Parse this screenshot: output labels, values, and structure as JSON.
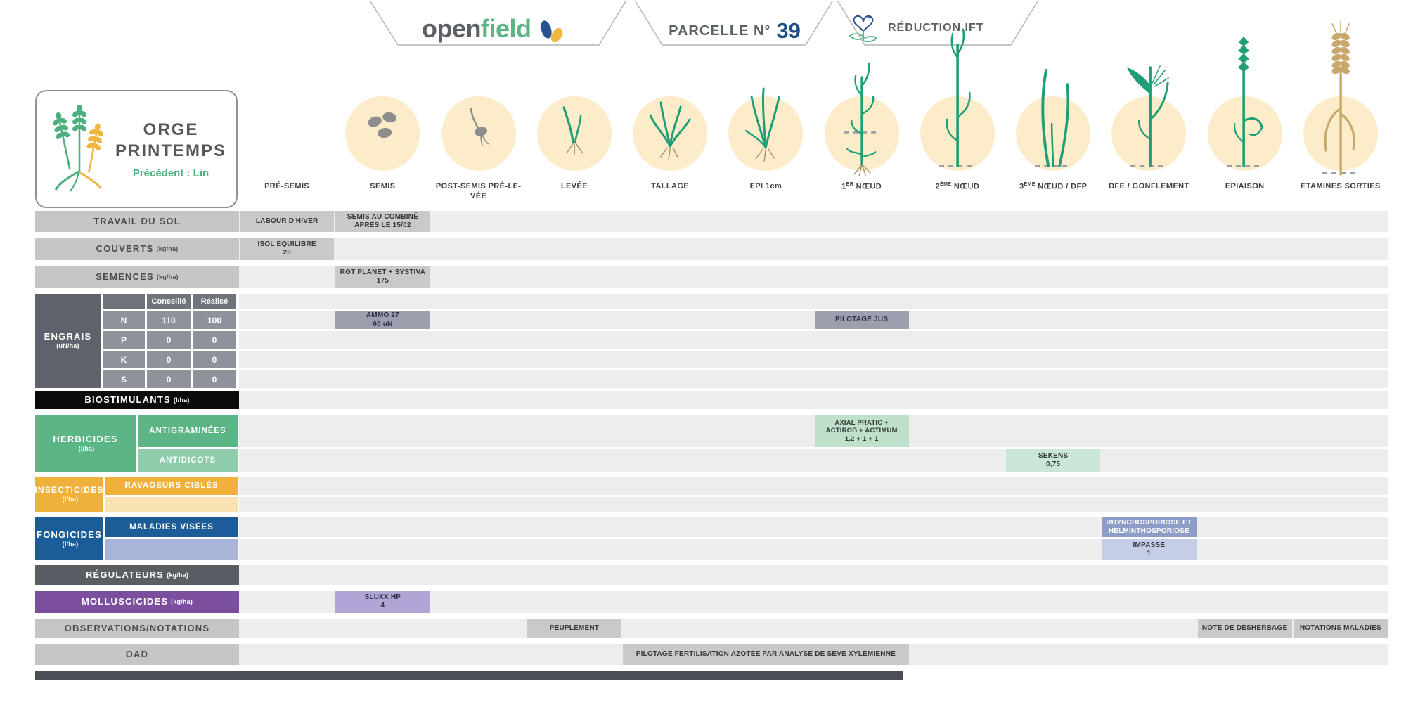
{
  "header": {
    "logo_part1": "open",
    "logo_part2": "field",
    "parcelle_label": "PARCELLE N°",
    "parcelle_number": "39",
    "reduction_label": "RÉDUCTION IFT"
  },
  "crop_card": {
    "title_line1": "ORGE",
    "title_line2": "PRINTEMPS",
    "subtitle": "Précédent : Lin"
  },
  "colors": {
    "accent_green": "#5cb585",
    "accent_blue": "#1d4f8a",
    "herbicides_green": "#5cb585",
    "herbicides_light": "#8fccab",
    "cell_green": "#bfe0cb",
    "cell_pale_green": "#c9e6d6",
    "insecticides_orange": "#f0b03c",
    "insecticides_light": "#f9e2b2",
    "fongicides_blue": "#1b5c99",
    "fongicides_light": "#a9b5d8",
    "cell_med_blue": "#8d9dc7",
    "cell_pale_blue": "#c6cde7",
    "molluscicides_purple": "#7b4f9e",
    "cell_light_purple": "#b1a5d6",
    "engrais_dark": "#5d626b",
    "engrais_mid": "#8d929b",
    "engrais_header": "#6e737c",
    "cell_engrais": "#9d9fae",
    "cell_gray": "#c9c9c9",
    "row_strip": "#ededee",
    "dark_row": "#595d64",
    "black_row": "#0b0b0b",
    "circle_cream": "#fcecc9",
    "plant_teal": "#1f9e77",
    "plant_tan": "#c9a86d"
  },
  "stages": [
    {
      "label": "PRÉ-SEMIS",
      "icon": "none"
    },
    {
      "label": "SEMIS",
      "icon": "seeds"
    },
    {
      "label": "POST-SEMIS PRÉ-LE-VÉE",
      "icon": "germination"
    },
    {
      "label": "LEVÉE",
      "icon": "sprout"
    },
    {
      "label": "TALLAGE",
      "icon": "tillering"
    },
    {
      "label": "EPI 1cm",
      "icon": "epi-1cm"
    },
    {
      "label_pre": "1",
      "label_sup": "ER",
      "label_post": " NŒUD",
      "icon": "node-1"
    },
    {
      "label_pre": "2",
      "label_sup": "ÈME",
      "label_post": " NŒUD",
      "icon": "node-2"
    },
    {
      "label_pre": "3",
      "label_sup": "ÈME",
      "label_post": " NŒUD / DFP",
      "icon": "node-3"
    },
    {
      "label": "DFE / GONFLEMENT",
      "icon": "flag-leaf"
    },
    {
      "label": "EPIAISON",
      "icon": "heading"
    },
    {
      "label": "ETAMINES SORTIES",
      "icon": "mature-ear"
    }
  ],
  "rows": [
    {
      "id": "travail",
      "type": "simple",
      "style": "gray",
      "label": "TRAVAIL DU SOL",
      "unit": "",
      "cells": [
        {
          "col": 0,
          "span": 1,
          "color": "gray",
          "lines": [
            "LABOUR D'HIVER"
          ]
        },
        {
          "col": 1,
          "span": 1,
          "color": "gray",
          "lines": [
            "SEMIS AU COMBINÉ",
            "APRÈS LE 15/02"
          ]
        }
      ]
    },
    {
      "id": "couverts",
      "type": "simple",
      "style": "gray",
      "label": "COUVERTS",
      "unit": "(kg/ha)",
      "cells": [
        {
          "col": 0,
          "span": 1,
          "color": "gray",
          "lines": [
            "ISOL EQUILIBRE",
            "25"
          ]
        }
      ]
    },
    {
      "id": "semences",
      "type": "simple",
      "style": "gray",
      "label": "SEMENCES",
      "unit": "(kg/ha)",
      "cells": [
        {
          "col": 1,
          "span": 1,
          "color": "gray",
          "lines": [
            "RGT PLANET + SYSTIVA",
            "175"
          ]
        }
      ]
    },
    {
      "id": "engrais",
      "type": "engrais",
      "label": "ENGRAIS",
      "unit": "(uN/ha)",
      "col_headers": [
        "Conseillé",
        "Réalisé"
      ],
      "nutrients": [
        {
          "name": "N",
          "conseille": "110",
          "realise": "100",
          "cells": [
            {
              "col": 1,
              "span": 1,
              "color": "engrais",
              "lines": [
                "AMMO 27",
                "60 uN"
              ]
            },
            {
              "col": 6,
              "span": 1,
              "color": "engrais",
              "lines": [
                "PILOTAGE JUS"
              ]
            }
          ]
        },
        {
          "name": "P",
          "conseille": "0",
          "realise": "0",
          "cells": []
        },
        {
          "name": "K",
          "conseille": "0",
          "realise": "0",
          "cells": []
        },
        {
          "name": "S",
          "conseille": "0",
          "realise": "0",
          "cells": []
        }
      ]
    },
    {
      "id": "biostimulants",
      "type": "simple",
      "style": "black",
      "label": "BIOSTIMULANTS",
      "unit": "(l/ha)",
      "cells": []
    },
    {
      "id": "herbicides",
      "type": "double",
      "style": "green",
      "label": "HERBICIDES",
      "unit": "(l/ha)",
      "subrows": [
        {
          "label": "ANTIGRAMINÉES",
          "tone": "dark",
          "cells": [
            {
              "col": 6,
              "span": 1,
              "color": "green",
              "lines": [
                "AXIAL PRATIC +",
                "ACTIROB + ACTIMUM",
                "1,2 + 1 + 1"
              ]
            }
          ]
        },
        {
          "label": "ANTIDICOTS",
          "tone": "light",
          "cells": [
            {
              "col": 8,
              "span": 1,
              "color": "palegreen",
              "lines": [
                "SEKENS",
                "0,75"
              ]
            }
          ]
        }
      ]
    },
    {
      "id": "insecticides",
      "type": "double",
      "style": "orange",
      "label": "INSECTICIDES",
      "unit": "(l/ha)",
      "subrows": [
        {
          "label": "RAVAGEURS CIBLÉS",
          "tone": "dark",
          "cells": []
        },
        {
          "label": "",
          "tone": "light",
          "cells": []
        }
      ]
    },
    {
      "id": "fongicides",
      "type": "double",
      "style": "blue",
      "label": "FONGICIDES",
      "unit": "(l/ha)",
      "subrows": [
        {
          "label": "MALADIES VISÉES",
          "tone": "dark",
          "cells": [
            {
              "col": 9,
              "span": 1,
              "color": "medblue",
              "lines": [
                "RHYNCHOSPORIOSE ET",
                "HELMINTHOSPORIOSE"
              ]
            }
          ]
        },
        {
          "label": "",
          "tone": "light",
          "cells": [
            {
              "col": 9,
              "span": 1,
              "color": "paleblue",
              "lines": [
                "IMPASSE",
                "1"
              ]
            }
          ]
        }
      ]
    },
    {
      "id": "regulateurs",
      "type": "simple",
      "style": "darkgray",
      "label": "RÉGULATEURS",
      "unit": "(kg/ha)",
      "cells": []
    },
    {
      "id": "molluscicides",
      "type": "simple",
      "style": "purple",
      "label": "MOLLUSCICIDES",
      "unit": "(kg/ha)",
      "cells": [
        {
          "col": 1,
          "span": 1,
          "color": "purple",
          "lines": [
            "SLUXX HP",
            "4"
          ]
        }
      ]
    },
    {
      "id": "observations",
      "type": "simple",
      "style": "gray",
      "label": "OBSERVATIONS/NOTATIONS",
      "unit": "",
      "cells": [
        {
          "col": 3,
          "span": 1,
          "color": "gray",
          "lines": [
            "PEUPLEMENT"
          ]
        },
        {
          "col": 10,
          "span": 1,
          "color": "gray",
          "lines": [
            "NOTE DE DÉSHERBAGE"
          ]
        },
        {
          "col": 11,
          "span": 1,
          "color": "gray",
          "lines": [
            "NOTATIONS MALADIES"
          ]
        }
      ]
    },
    {
      "id": "oad",
      "type": "simple",
      "style": "gray",
      "label": "OAD",
      "unit": "",
      "cells": [
        {
          "col": 4,
          "span": 3,
          "color": "gray",
          "lines": [
            "PILOTAGE FERTILISATION AZOTÉE PAR ANALYSE DE SÈVE XYLÉMIENNE"
          ]
        }
      ]
    }
  ]
}
